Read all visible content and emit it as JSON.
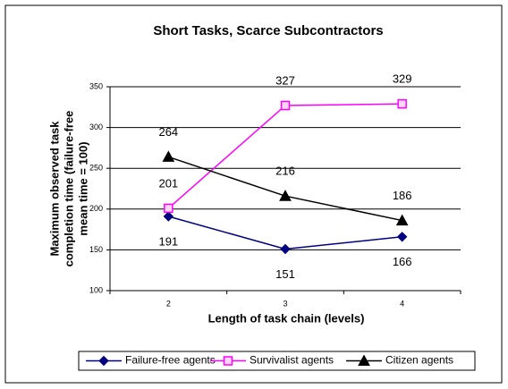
{
  "chart_data": {
    "type": "line",
    "title": "Short Tasks, Scarce Subcontractors",
    "x_label": "Length of task chain (levels)",
    "y_label": [
      "Maximum observed task",
      "completion time (failure-free",
      "mean time = 100)"
    ],
    "categories": [
      "2",
      "3",
      "4"
    ],
    "ylim": [
      100,
      350
    ],
    "yticks": [
      100,
      150,
      200,
      250,
      300,
      350
    ],
    "grid": true,
    "legend": "bottom",
    "series": [
      {
        "name": "Failure-free agents",
        "color": "#000080",
        "marker": "diamond",
        "label_position": "below",
        "values": [
          191,
          151,
          166
        ]
      },
      {
        "name": "Survivalist agents",
        "color": "#ff00ff",
        "marker": "square",
        "label_position": "above",
        "values": [
          201,
          327,
          329
        ]
      },
      {
        "name": "Citizen agents",
        "color": "#000000",
        "marker": "triangle",
        "label_position": "above",
        "values": [
          264,
          216,
          186
        ]
      }
    ]
  }
}
